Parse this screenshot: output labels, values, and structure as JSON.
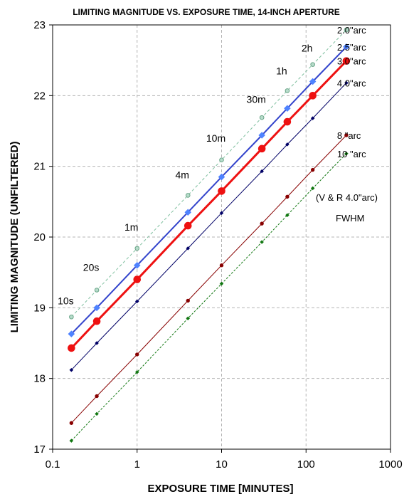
{
  "chart_data": {
    "type": "line",
    "title": "LIMITING MAGNITUDE VS. EXPOSURE TIME, 14-INCH APERTURE",
    "xlabel": "EXPOSURE TIME [MINUTES]",
    "ylabel": "LIMITING MAGNITUDE (UNFILTERED)",
    "x_scale": "log",
    "xlim": [
      0.1,
      1000
    ],
    "ylim": [
      17,
      23
    ],
    "x_ticks": [
      "0.1",
      "1",
      "10",
      "100",
      "1000"
    ],
    "y_ticks": [
      "17",
      "18",
      "19",
      "20",
      "21",
      "22",
      "23"
    ],
    "grid": true,
    "x": [
      0.1667,
      0.3333,
      1,
      4,
      10,
      30,
      60,
      120,
      300
    ],
    "series": [
      {
        "name": "2.0\"arc",
        "color": "#7fbf9f",
        "values": [
          18.87,
          19.25,
          19.84,
          20.59,
          21.09,
          21.69,
          22.07,
          22.44,
          22.93
        ]
      },
      {
        "name": "2.5\"arc",
        "color": "#3344cc",
        "values": [
          18.63,
          19.0,
          19.6,
          20.35,
          20.85,
          21.44,
          21.82,
          22.2,
          22.69
        ]
      },
      {
        "name": "3.0\"arc",
        "color": "#ee1111",
        "values": [
          18.43,
          18.81,
          19.4,
          20.16,
          20.65,
          21.25,
          21.63,
          22.0,
          22.49
        ]
      },
      {
        "name": "4.0\"arc",
        "color": "#000066",
        "values": [
          18.12,
          18.5,
          19.09,
          19.84,
          20.34,
          20.93,
          21.31,
          21.68,
          22.18
        ]
      },
      {
        "name": "8 \"arc",
        "color": "#880000",
        "values": [
          17.37,
          17.75,
          18.34,
          19.1,
          19.6,
          20.19,
          20.57,
          20.95,
          21.44
        ]
      },
      {
        "name": "10 \"arc",
        "color": "#117711",
        "values": [
          17.12,
          17.5,
          18.09,
          18.85,
          19.34,
          19.93,
          20.31,
          20.69,
          21.18
        ]
      }
    ],
    "annotations": [
      {
        "text": "10s",
        "x": 0.1667,
        "y": 19.05
      },
      {
        "text": "20s",
        "x": 0.3333,
        "y": 19.52
      },
      {
        "text": "1m",
        "x": 1,
        "y": 20.09
      },
      {
        "text": "4m",
        "x": 4,
        "y": 20.83
      },
      {
        "text": "10m",
        "x": 10,
        "y": 21.35
      },
      {
        "text": "30m",
        "x": 30,
        "y": 21.9
      },
      {
        "text": "1h",
        "x": 60,
        "y": 22.3
      },
      {
        "text": "2h",
        "x": 120,
        "y": 22.62
      }
    ],
    "notes": [
      "(V & R 4.0\"arc)",
      "FWHM"
    ]
  }
}
